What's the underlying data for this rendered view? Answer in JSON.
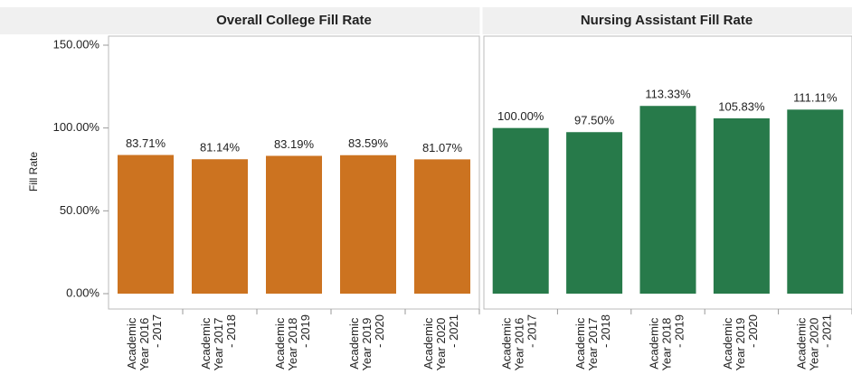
{
  "chart_data": [
    {
      "type": "bar",
      "title": "Overall College Fill Rate",
      "ylabel": "Fill Rate",
      "categories": [
        "Academic Year 2016 - 2017",
        "Academic Year 2017 - 2018",
        "Academic Year 2018 - 2019",
        "Academic Year 2019 - 2020",
        "Academic Year 2020 - 2021"
      ],
      "values": [
        83.71,
        81.14,
        83.19,
        83.59,
        81.07
      ],
      "value_labels": [
        "83.71%",
        "81.14%",
        "83.19%",
        "83.59%",
        "81.07%"
      ],
      "color": "#cc7320",
      "ylim": [
        0,
        150
      ],
      "yticks": [
        {
          "value": 0,
          "label": "0.00%"
        },
        {
          "value": 50,
          "label": "50.00%"
        },
        {
          "value": 100,
          "label": "100.00%"
        },
        {
          "value": 150,
          "label": "150.00%"
        }
      ]
    },
    {
      "type": "bar",
      "title": "Nursing Assistant Fill Rate",
      "categories": [
        "Academic Year 2016 - 2017",
        "Academic Year 2017 - 2018",
        "Academic Year 2018 - 2019",
        "Academic Year 2019 - 2020",
        "Academic Year 2020 - 2021"
      ],
      "values": [
        100.0,
        97.5,
        113.33,
        105.83,
        111.11
      ],
      "value_labels": [
        "100.00%",
        "97.50%",
        "113.33%",
        "105.83%",
        "111.11%"
      ],
      "color": "#277a4a",
      "ylim": [
        0,
        150
      ]
    }
  ]
}
